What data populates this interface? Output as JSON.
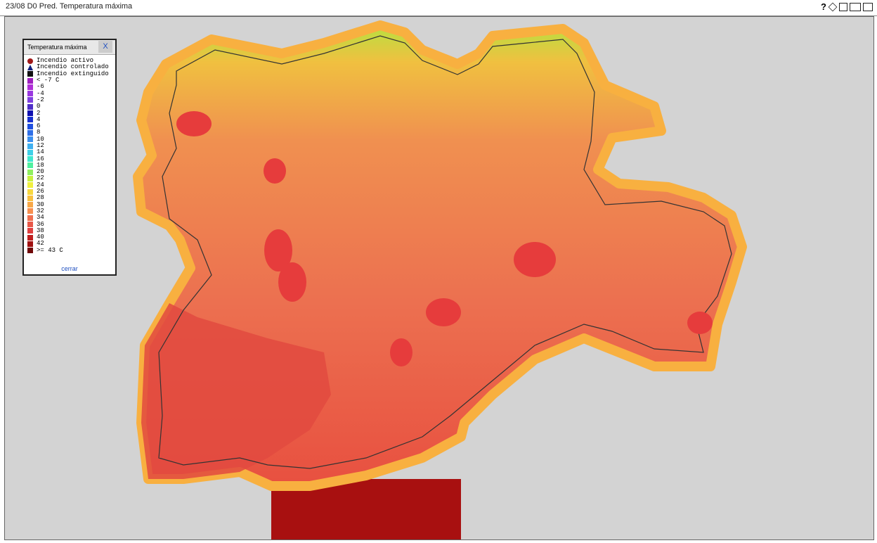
{
  "header": {
    "title": "23/08 D0 Pred. Temperatura máxima",
    "help": "?"
  },
  "legend": {
    "title": "Temperatura máxima",
    "close": "X",
    "footer": "cerrar",
    "items": [
      {
        "label": "Incendio activo",
        "color": "#a01818"
      },
      {
        "label": "Incendio controlado",
        "color": "#102080"
      },
      {
        "label": "Incendio extinguido",
        "color": "#111111"
      },
      {
        "label": "< -7 C",
        "color": "#a020c0"
      },
      {
        "label": "-6",
        "color": "#b030d8"
      },
      {
        "label": "-4",
        "color": "#9a38e0"
      },
      {
        "label": "-2",
        "color": "#8040e0"
      },
      {
        "label": "0",
        "color": "#5030c8"
      },
      {
        "label": "2",
        "color": "#1010b0"
      },
      {
        "label": "4",
        "color": "#1830d0"
      },
      {
        "label": "6",
        "color": "#2050e0"
      },
      {
        "label": "8",
        "color": "#3070e8"
      },
      {
        "label": "10",
        "color": "#3c90f0"
      },
      {
        "label": "12",
        "color": "#40b0f0"
      },
      {
        "label": "14",
        "color": "#40d0e8"
      },
      {
        "label": "16",
        "color": "#40e8d0"
      },
      {
        "label": "18",
        "color": "#50f0a0"
      },
      {
        "label": "20",
        "color": "#90f060"
      },
      {
        "label": "22",
        "color": "#c8f040"
      },
      {
        "label": "24",
        "color": "#f0f040"
      },
      {
        "label": "26",
        "color": "#f8d840"
      },
      {
        "label": "28",
        "color": "#f8c040"
      },
      {
        "label": "30",
        "color": "#f8a848"
      },
      {
        "label": "32",
        "color": "#f89050"
      },
      {
        "label": "34",
        "color": "#f07050"
      },
      {
        "label": "36",
        "color": "#e85848"
      },
      {
        "label": "38",
        "color": "#e04040"
      },
      {
        "label": "40",
        "color": "#c02020"
      },
      {
        "label": "42",
        "color": "#a01010"
      },
      {
        "label": ">= 43 C",
        "color": "#700808"
      }
    ]
  }
}
